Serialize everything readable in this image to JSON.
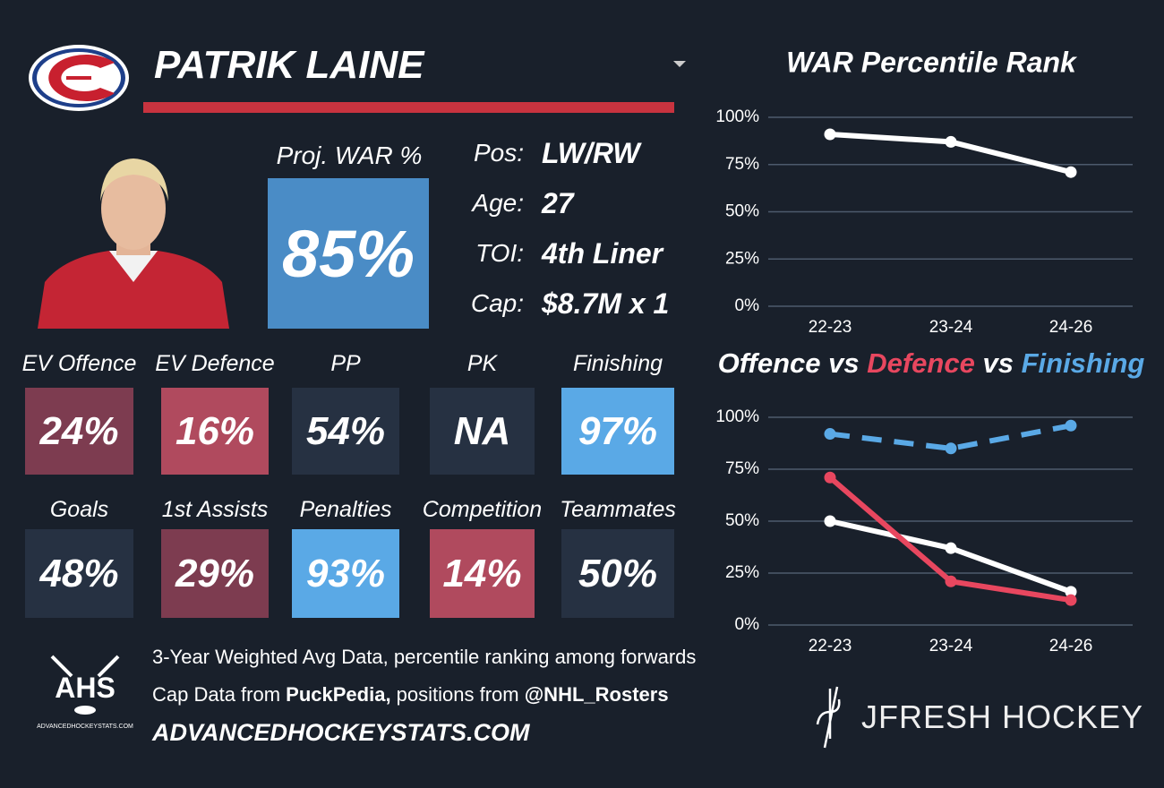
{
  "header": {
    "player": "PATRIK LAINE"
  },
  "war": {
    "label": "Proj. WAR %",
    "value": "85%",
    "color": "#4a8cc6"
  },
  "info": [
    {
      "label": "Pos:",
      "value": "LW/RW"
    },
    {
      "label": "Age:",
      "value": "27"
    },
    {
      "label": "TOI:",
      "value": "4th Liner"
    },
    {
      "label": "Cap:",
      "value": "$8.7M x 1"
    }
  ],
  "tiles": [
    {
      "label": "EV Offence",
      "value": "24%",
      "color": "#7d3c50"
    },
    {
      "label": "EV Defence",
      "value": "16%",
      "color": "#b04a5e"
    },
    {
      "label": "PP",
      "value": "54%",
      "color": "#263142"
    },
    {
      "label": "PK",
      "value": "NA",
      "color": "#263142"
    },
    {
      "label": "Finishing",
      "value": "97%",
      "color": "#5aa9e6"
    },
    {
      "label": "Goals",
      "value": "48%",
      "color": "#263142"
    },
    {
      "label": "1st Assists",
      "value": "29%",
      "color": "#7d3c50"
    },
    {
      "label": "Penalties",
      "value": "93%",
      "color": "#5aa9e6"
    },
    {
      "label": "Competition",
      "value": "14%",
      "color": "#b04a5e"
    },
    {
      "label": "Teammates",
      "value": "50%",
      "color": "#263142"
    }
  ],
  "footer": {
    "line1": "3-Year Weighted Avg Data, percentile ranking among forwards",
    "line2": [
      "Cap Data from ",
      "PuckPedia,",
      " positions from ",
      "@NHL_Rosters"
    ],
    "site": "ADVANCEDHOCKEYSTATS.COM",
    "logo": "AHS",
    "logo_small": "ADVANCEDHOCKEYSTATS.COM",
    "brand": "JFRESH HOCKEY"
  },
  "chart_data": [
    {
      "type": "line",
      "title": "WAR Percentile Rank",
      "categories": [
        "22-23",
        "23-24",
        "24-26"
      ],
      "series": [
        {
          "color": "#ffffff",
          "values": [
            91,
            87,
            71
          ]
        }
      ],
      "ylim": [
        0,
        100
      ],
      "yticks": [
        {
          "value": 0,
          "label": "0%"
        },
        {
          "value": 25,
          "label": "25%"
        },
        {
          "value": 50,
          "label": "50%"
        },
        {
          "value": 75,
          "label": "75%"
        },
        {
          "value": 100,
          "label": "100%"
        }
      ],
      "grid": true
    },
    {
      "type": "line",
      "title_connector": "vs",
      "categories": [
        "22-23",
        "23-24",
        "24-26"
      ],
      "series": [
        {
          "name": "Offence",
          "color": "#ffffff",
          "values": [
            50,
            37,
            16
          ]
        },
        {
          "name": "Defence",
          "color": "#e8475f",
          "values": [
            71,
            21,
            12
          ]
        },
        {
          "name": "Finishing",
          "color": "#5aa9e6",
          "values": [
            92,
            85,
            96
          ],
          "dashed": true
        }
      ],
      "ylim": [
        0,
        100
      ],
      "yticks": [
        {
          "value": 0,
          "label": "0%"
        },
        {
          "value": 25,
          "label": "25%"
        },
        {
          "value": 50,
          "label": "50%"
        },
        {
          "value": 75,
          "label": "75%"
        },
        {
          "value": 100,
          "label": "100%"
        }
      ],
      "grid": true
    }
  ]
}
